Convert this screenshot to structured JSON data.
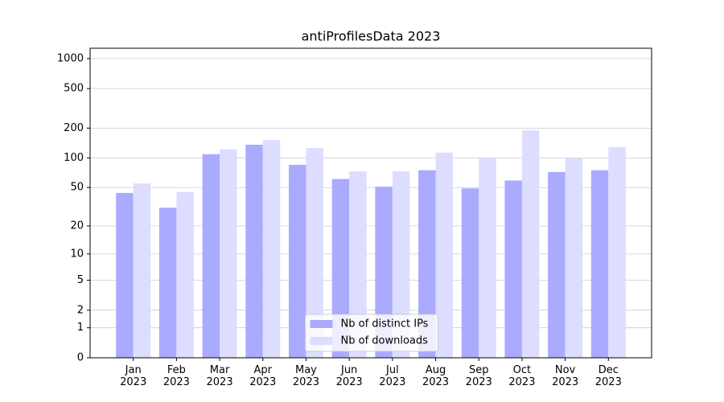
{
  "chart_data": {
    "type": "bar",
    "title": "antiProfilesData 2023",
    "categories": [
      "Jan\n2023",
      "Feb\n2023",
      "Mar\n2023",
      "Apr\n2023",
      "May\n2023",
      "Jun\n2023",
      "Jul\n2023",
      "Aug\n2023",
      "Sep\n2023",
      "Oct\n2023",
      "Nov\n2023",
      "Dec\n2023"
    ],
    "series": [
      {
        "name": "Nb of distinct IPs",
        "color": "#aaaaff",
        "values": [
          44,
          31,
          109,
          136,
          85,
          61,
          51,
          75,
          49,
          59,
          72,
          75
        ]
      },
      {
        "name": "Nb of downloads",
        "color": "#ddddff",
        "values": [
          55,
          45,
          122,
          152,
          126,
          73,
          73,
          113,
          100,
          190,
          100,
          129
        ]
      }
    ],
    "y_scale": "log1p",
    "ylim": [
      0,
      1270
    ],
    "yticks": [
      0,
      1,
      2,
      5,
      10,
      20,
      50,
      100,
      200,
      500,
      1000
    ],
    "grid": true,
    "legend": "lower center"
  }
}
